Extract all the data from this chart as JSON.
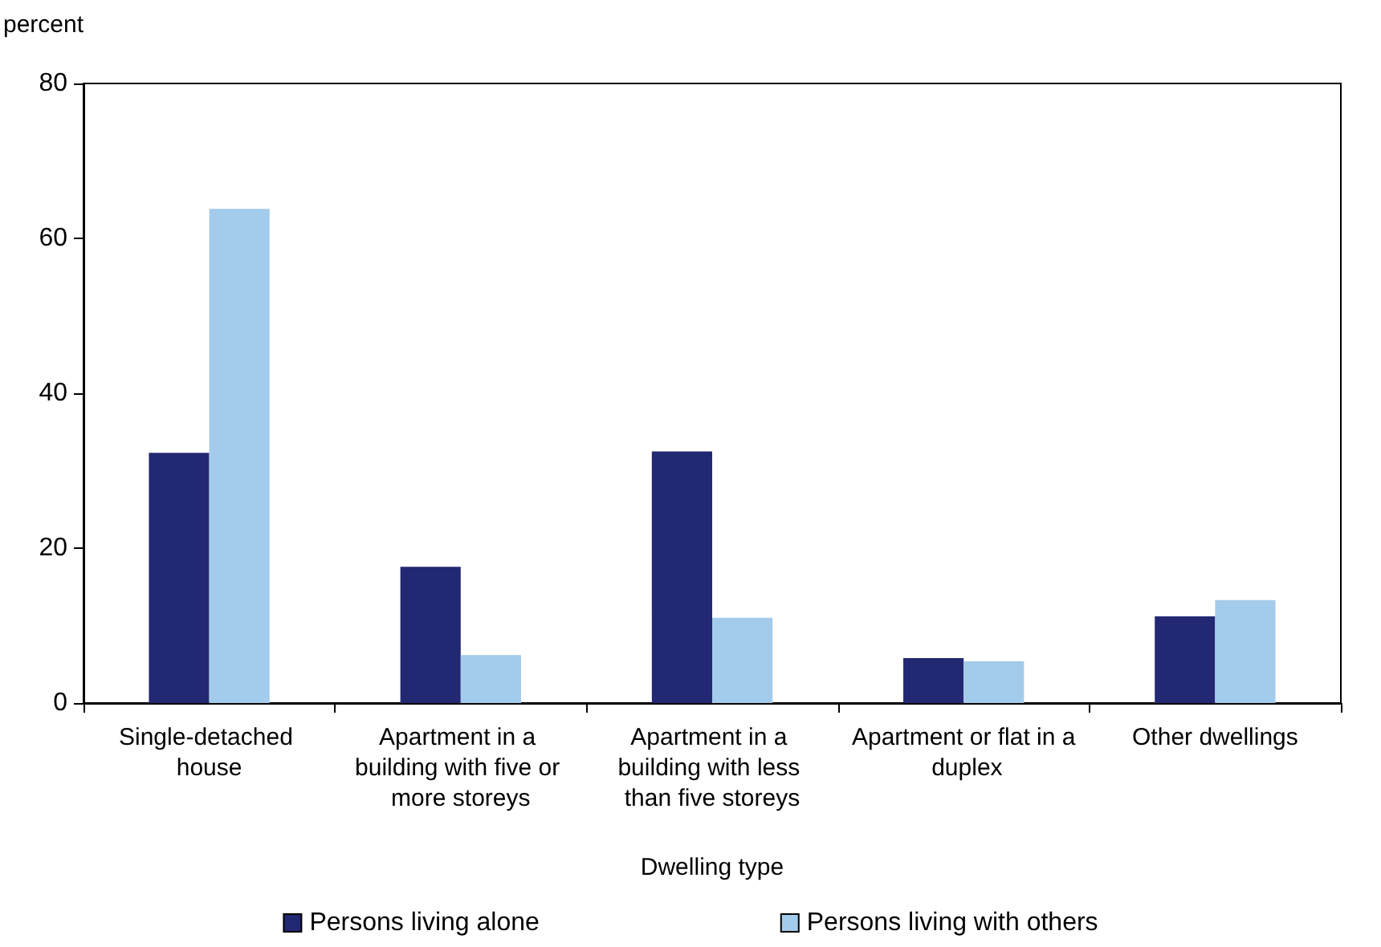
{
  "chart_data": {
    "type": "bar",
    "ylabel": "percent",
    "xlabel": "Dwelling type",
    "categories": [
      "Single-detached house",
      "Apartment in a building with five or more storeys",
      "Apartment in a building with less than five storeys",
      "Apartment or flat in a duplex",
      "Other dwellings"
    ],
    "series": [
      {
        "name": "Persons living alone",
        "color": "#232873",
        "values": [
          32.3,
          17.6,
          32.5,
          5.8,
          11.2
        ]
      },
      {
        "name": "Persons living with others",
        "color": "#a3cbeb",
        "values": [
          63.8,
          6.2,
          11.0,
          5.4,
          13.3
        ]
      }
    ],
    "ylim": [
      0,
      80
    ],
    "yticks": [
      0,
      20,
      40,
      60,
      80
    ],
    "grid": false,
    "legend": "bottom"
  }
}
